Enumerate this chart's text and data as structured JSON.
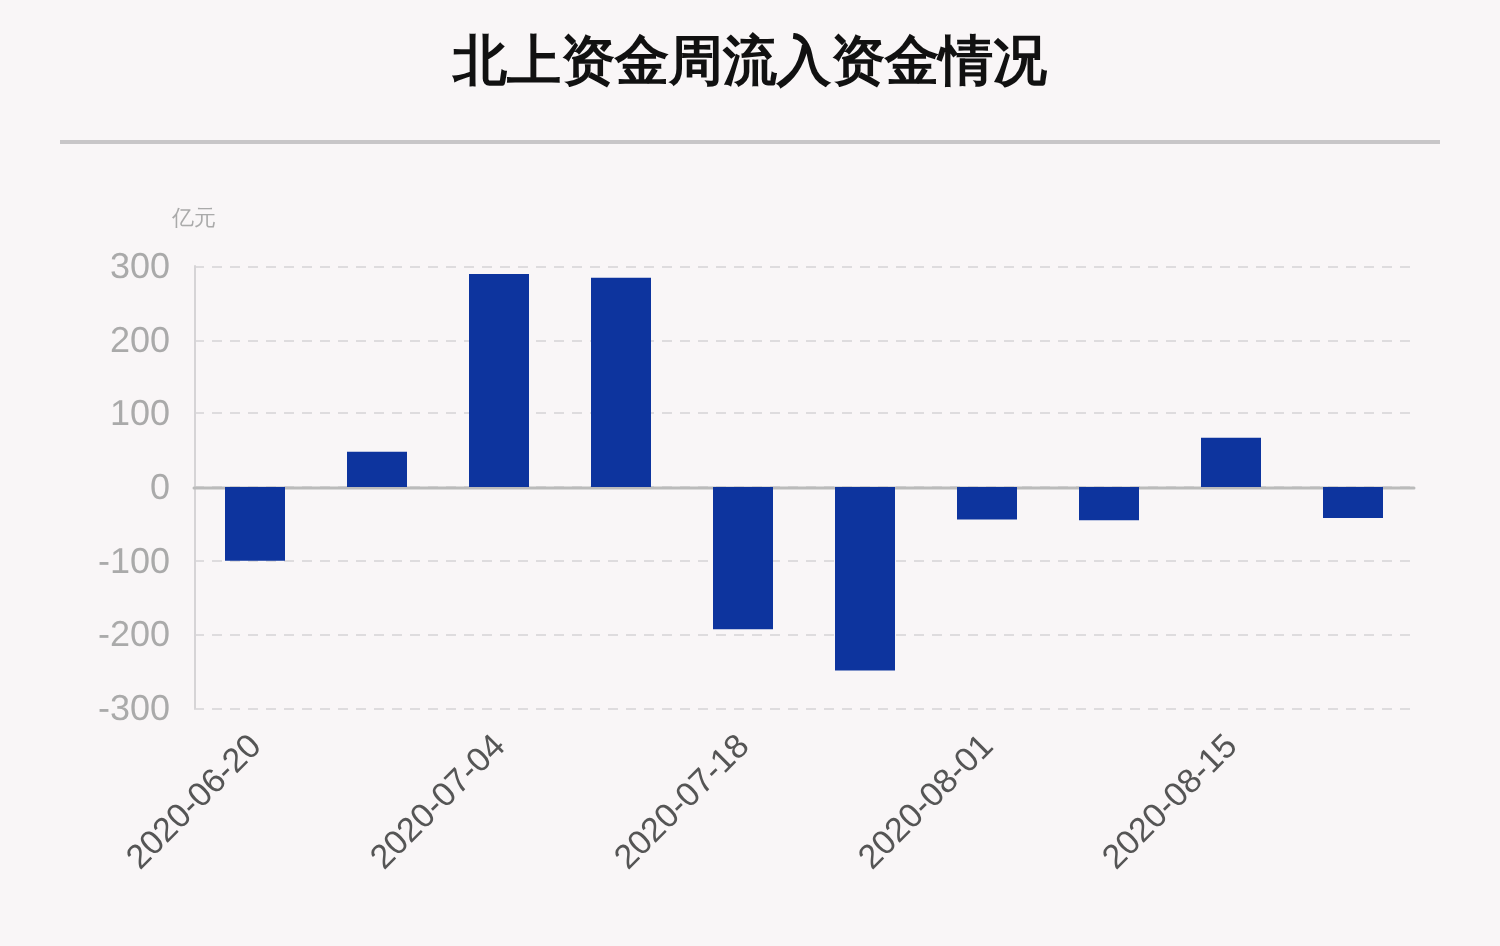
{
  "chart_data": {
    "type": "bar",
    "title": "北上资金周流入资金情况",
    "ylabel": "亿元",
    "categories": [
      "2020-06-20",
      null,
      "2020-07-04",
      null,
      "2020-07-18",
      null,
      "2020-08-01",
      null,
      "2020-08-15",
      null
    ],
    "values": [
      -100,
      48,
      289,
      284,
      -193,
      -249,
      -44,
      -45,
      67,
      -42
    ],
    "color": "#0d349e",
    "ylim": [
      -300,
      300
    ],
    "yticks": [
      -300,
      -200,
      -100,
      0,
      100,
      200,
      300
    ],
    "grid": "y"
  }
}
